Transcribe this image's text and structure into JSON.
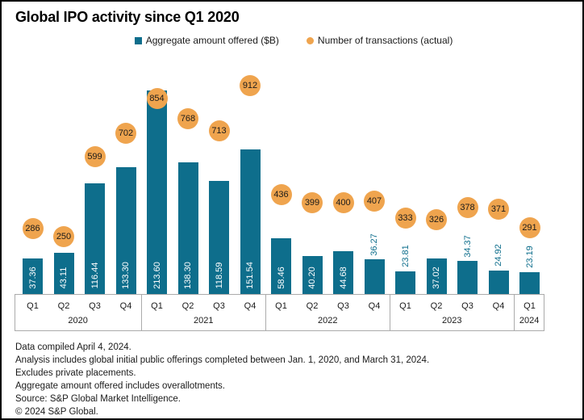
{
  "title": "Global IPO activity since Q1 2020",
  "colors": {
    "bar_teal": "#0e6e8c",
    "txn_orange": "#efa44e",
    "axis_border": "#ababab"
  },
  "legend": {
    "items": [
      {
        "label": "Aggregate amount offered ($B)",
        "marker": "square-icon",
        "color": "#0e6e8c"
      },
      {
        "label": "Number of transactions (actual)",
        "marker": "circle-icon",
        "color": "#efa44e"
      }
    ]
  },
  "chart_data": {
    "type": "bar",
    "title": "Global IPO activity since Q1 2020",
    "xlabel": "",
    "ylabel": "",
    "grid": false,
    "legend_position": "top-center",
    "categories": [
      "Q1 2020",
      "Q2 2020",
      "Q3 2020",
      "Q4 2020",
      "Q1 2021",
      "Q2 2021",
      "Q3 2021",
      "Q4 2021",
      "Q1 2022",
      "Q2 2022",
      "Q3 2022",
      "Q4 2022",
      "Q1 2023",
      "Q2 2023",
      "Q3 2023",
      "Q4 2023",
      "Q1 2024"
    ],
    "groups": [
      {
        "year": "2020",
        "quarters": [
          "Q1",
          "Q2",
          "Q3",
          "Q4"
        ]
      },
      {
        "year": "2021",
        "quarters": [
          "Q1",
          "Q2",
          "Q3",
          "Q4"
        ]
      },
      {
        "year": "2022",
        "quarters": [
          "Q1",
          "Q2",
          "Q3",
          "Q4"
        ]
      },
      {
        "year": "2023",
        "quarters": [
          "Q1",
          "Q2",
          "Q3",
          "Q4"
        ]
      },
      {
        "year": "2024",
        "quarters": [
          "Q1"
        ]
      }
    ],
    "series": [
      {
        "name": "Aggregate amount offered ($B)",
        "type": "bar",
        "color": "#0e6e8c",
        "values": [
          37.36,
          43.11,
          116.44,
          133.3,
          213.6,
          138.3,
          118.59,
          151.54,
          58.46,
          40.2,
          44.68,
          36.27,
          23.81,
          37.02,
          34.37,
          24.92,
          23.19
        ],
        "label_decimals": 2
      },
      {
        "name": "Number of transactions (actual)",
        "type": "point",
        "color": "#efa44e",
        "values": [
          286,
          250,
          599,
          702,
          854,
          768,
          713,
          912,
          436,
          399,
          400,
          407,
          333,
          326,
          378,
          371,
          291
        ]
      }
    ]
  },
  "footnotes": [
    "Data compiled April 4, 2024.",
    "Analysis includes global initial public offerings completed between Jan. 1, 2020, and March 31, 2024.",
    "Excludes private placements.",
    "Aggregate amount offered includes overallotments.",
    "Source: S&P Global Market Intelligence.",
    "© 2024 S&P Global."
  ]
}
